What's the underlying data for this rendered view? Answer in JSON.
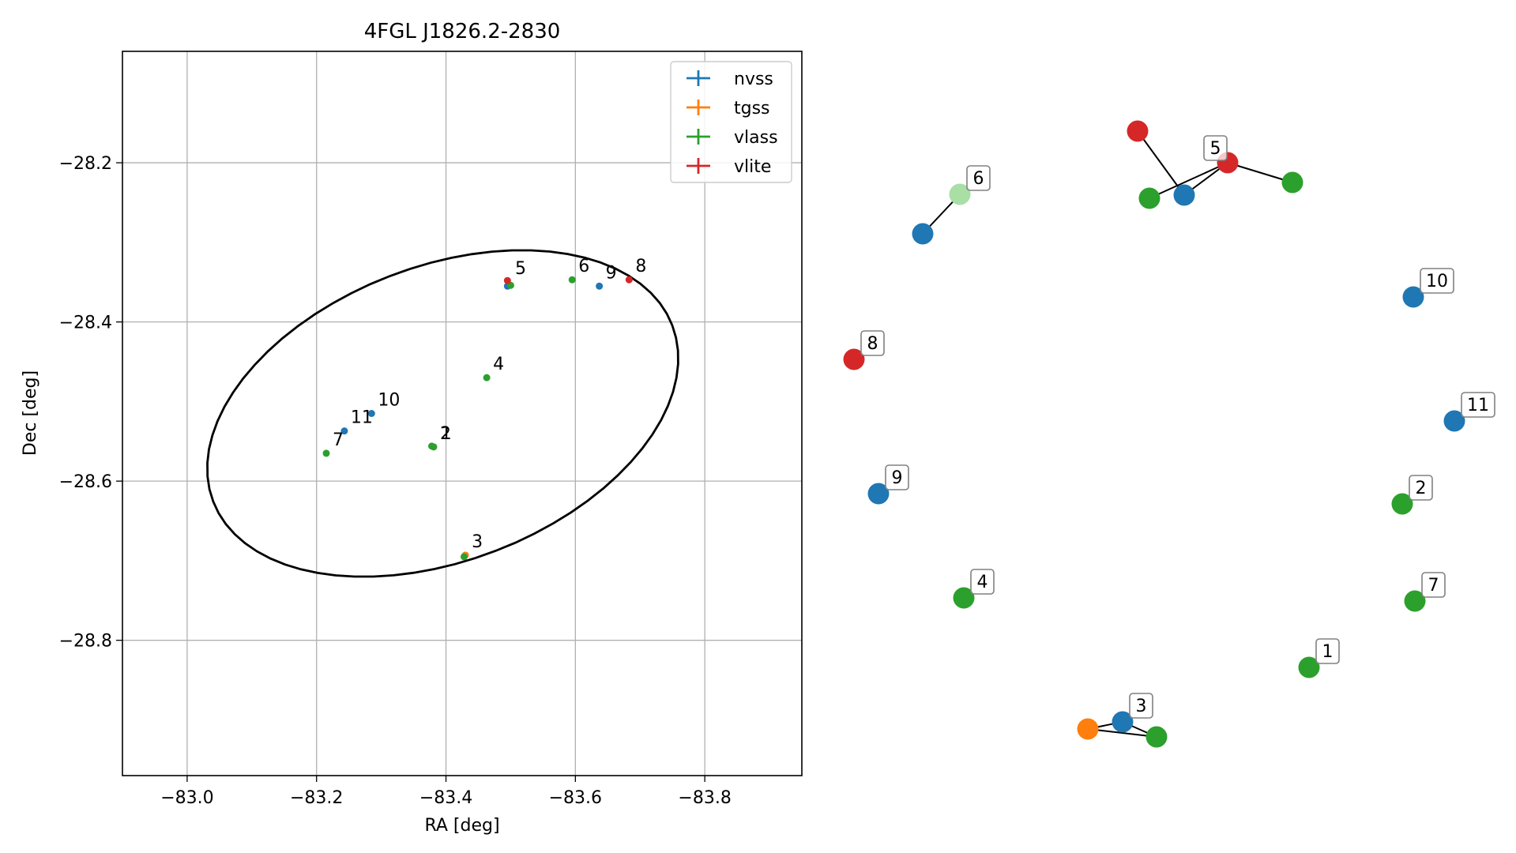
{
  "chart_data": [
    {
      "type": "scatter",
      "title": "4FGL J1826.2-2830",
      "xlabel": "RA [deg]",
      "ylabel": "Dec [deg]",
      "xlim": [
        -83.95,
        -82.9
      ],
      "ylim": [
        -28.97,
        -28.06
      ],
      "x_inverted": true,
      "grid": true,
      "legend_position": "top-right",
      "xticks": [
        -83.8,
        -83.6,
        -83.4,
        -83.2,
        -83.0
      ],
      "xtick_labels": [
        "−83.8",
        "−83.6",
        "−83.4",
        "−83.2",
        "−83.0"
      ],
      "yticks": [
        -28.2,
        -28.4,
        -28.6,
        -28.8
      ],
      "ytick_labels": [
        "−28.2",
        "−28.4",
        "−28.6",
        "−28.8"
      ],
      "legend": [
        {
          "name": "nvss",
          "color": "#1f77b4"
        },
        {
          "name": "tgss",
          "color": "#ff7f0e"
        },
        {
          "name": "vlass",
          "color": "#2ca02c"
        },
        {
          "name": "vlite",
          "color": "#d62728"
        }
      ],
      "ellipse": {
        "center_ra": -83.395,
        "center_dec": -28.515,
        "semi_major_deg": 0.38,
        "semi_minor_deg": 0.185,
        "angle_deg": -21
      },
      "series": [
        {
          "name": "nvss",
          "color": "#1f77b4",
          "points": [
            {
              "ra": -83.637,
              "dec": -28.355
            },
            {
              "ra": -83.285,
              "dec": -28.515
            },
            {
              "ra": -83.243,
              "dec": -28.537
            },
            {
              "ra": -83.495,
              "dec": -28.355
            }
          ]
        },
        {
          "name": "tgss",
          "color": "#ff7f0e",
          "points": [
            {
              "ra": -83.43,
              "dec": -28.693
            }
          ]
        },
        {
          "name": "vlass",
          "color": "#2ca02c",
          "points": [
            {
              "ra": -83.595,
              "dec": -28.347
            },
            {
              "ra": -83.5,
              "dec": -28.354
            },
            {
              "ra": -83.463,
              "dec": -28.47
            },
            {
              "ra": -83.381,
              "dec": -28.557
            },
            {
              "ra": -83.378,
              "dec": -28.556
            },
            {
              "ra": -83.428,
              "dec": -28.695
            },
            {
              "ra": -83.215,
              "dec": -28.565
            }
          ]
        },
        {
          "name": "vlite",
          "color": "#d62728",
          "points": [
            {
              "ra": -83.683,
              "dec": -28.347
            },
            {
              "ra": -83.495,
              "dec": -28.348
            }
          ]
        }
      ],
      "point_labels": [
        {
          "text": "8",
          "ra": -83.683,
          "dec": -28.347
        },
        {
          "text": "9",
          "ra": -83.637,
          "dec": -28.355
        },
        {
          "text": "6",
          "ra": -83.595,
          "dec": -28.347
        },
        {
          "text": "5",
          "ra": -83.497,
          "dec": -28.35
        },
        {
          "text": "4",
          "ra": -83.463,
          "dec": -28.47
        },
        {
          "text": "10",
          "ra": -83.285,
          "dec": -28.515
        },
        {
          "text": "11",
          "ra": -83.243,
          "dec": -28.537
        },
        {
          "text": "1",
          "ra": -83.382,
          "dec": -28.557
        },
        {
          "text": "2",
          "ra": -83.381,
          "dec": -28.557
        },
        {
          "text": "7",
          "ra": -83.215,
          "dec": -28.565
        },
        {
          "text": "3",
          "ra": -83.43,
          "dec": -28.693
        }
      ]
    },
    {
      "type": "network",
      "node_labels": [
        "1",
        "2",
        "3",
        "4",
        "5",
        "6",
        "7",
        "8",
        "9",
        "10",
        "11"
      ]
    }
  ]
}
